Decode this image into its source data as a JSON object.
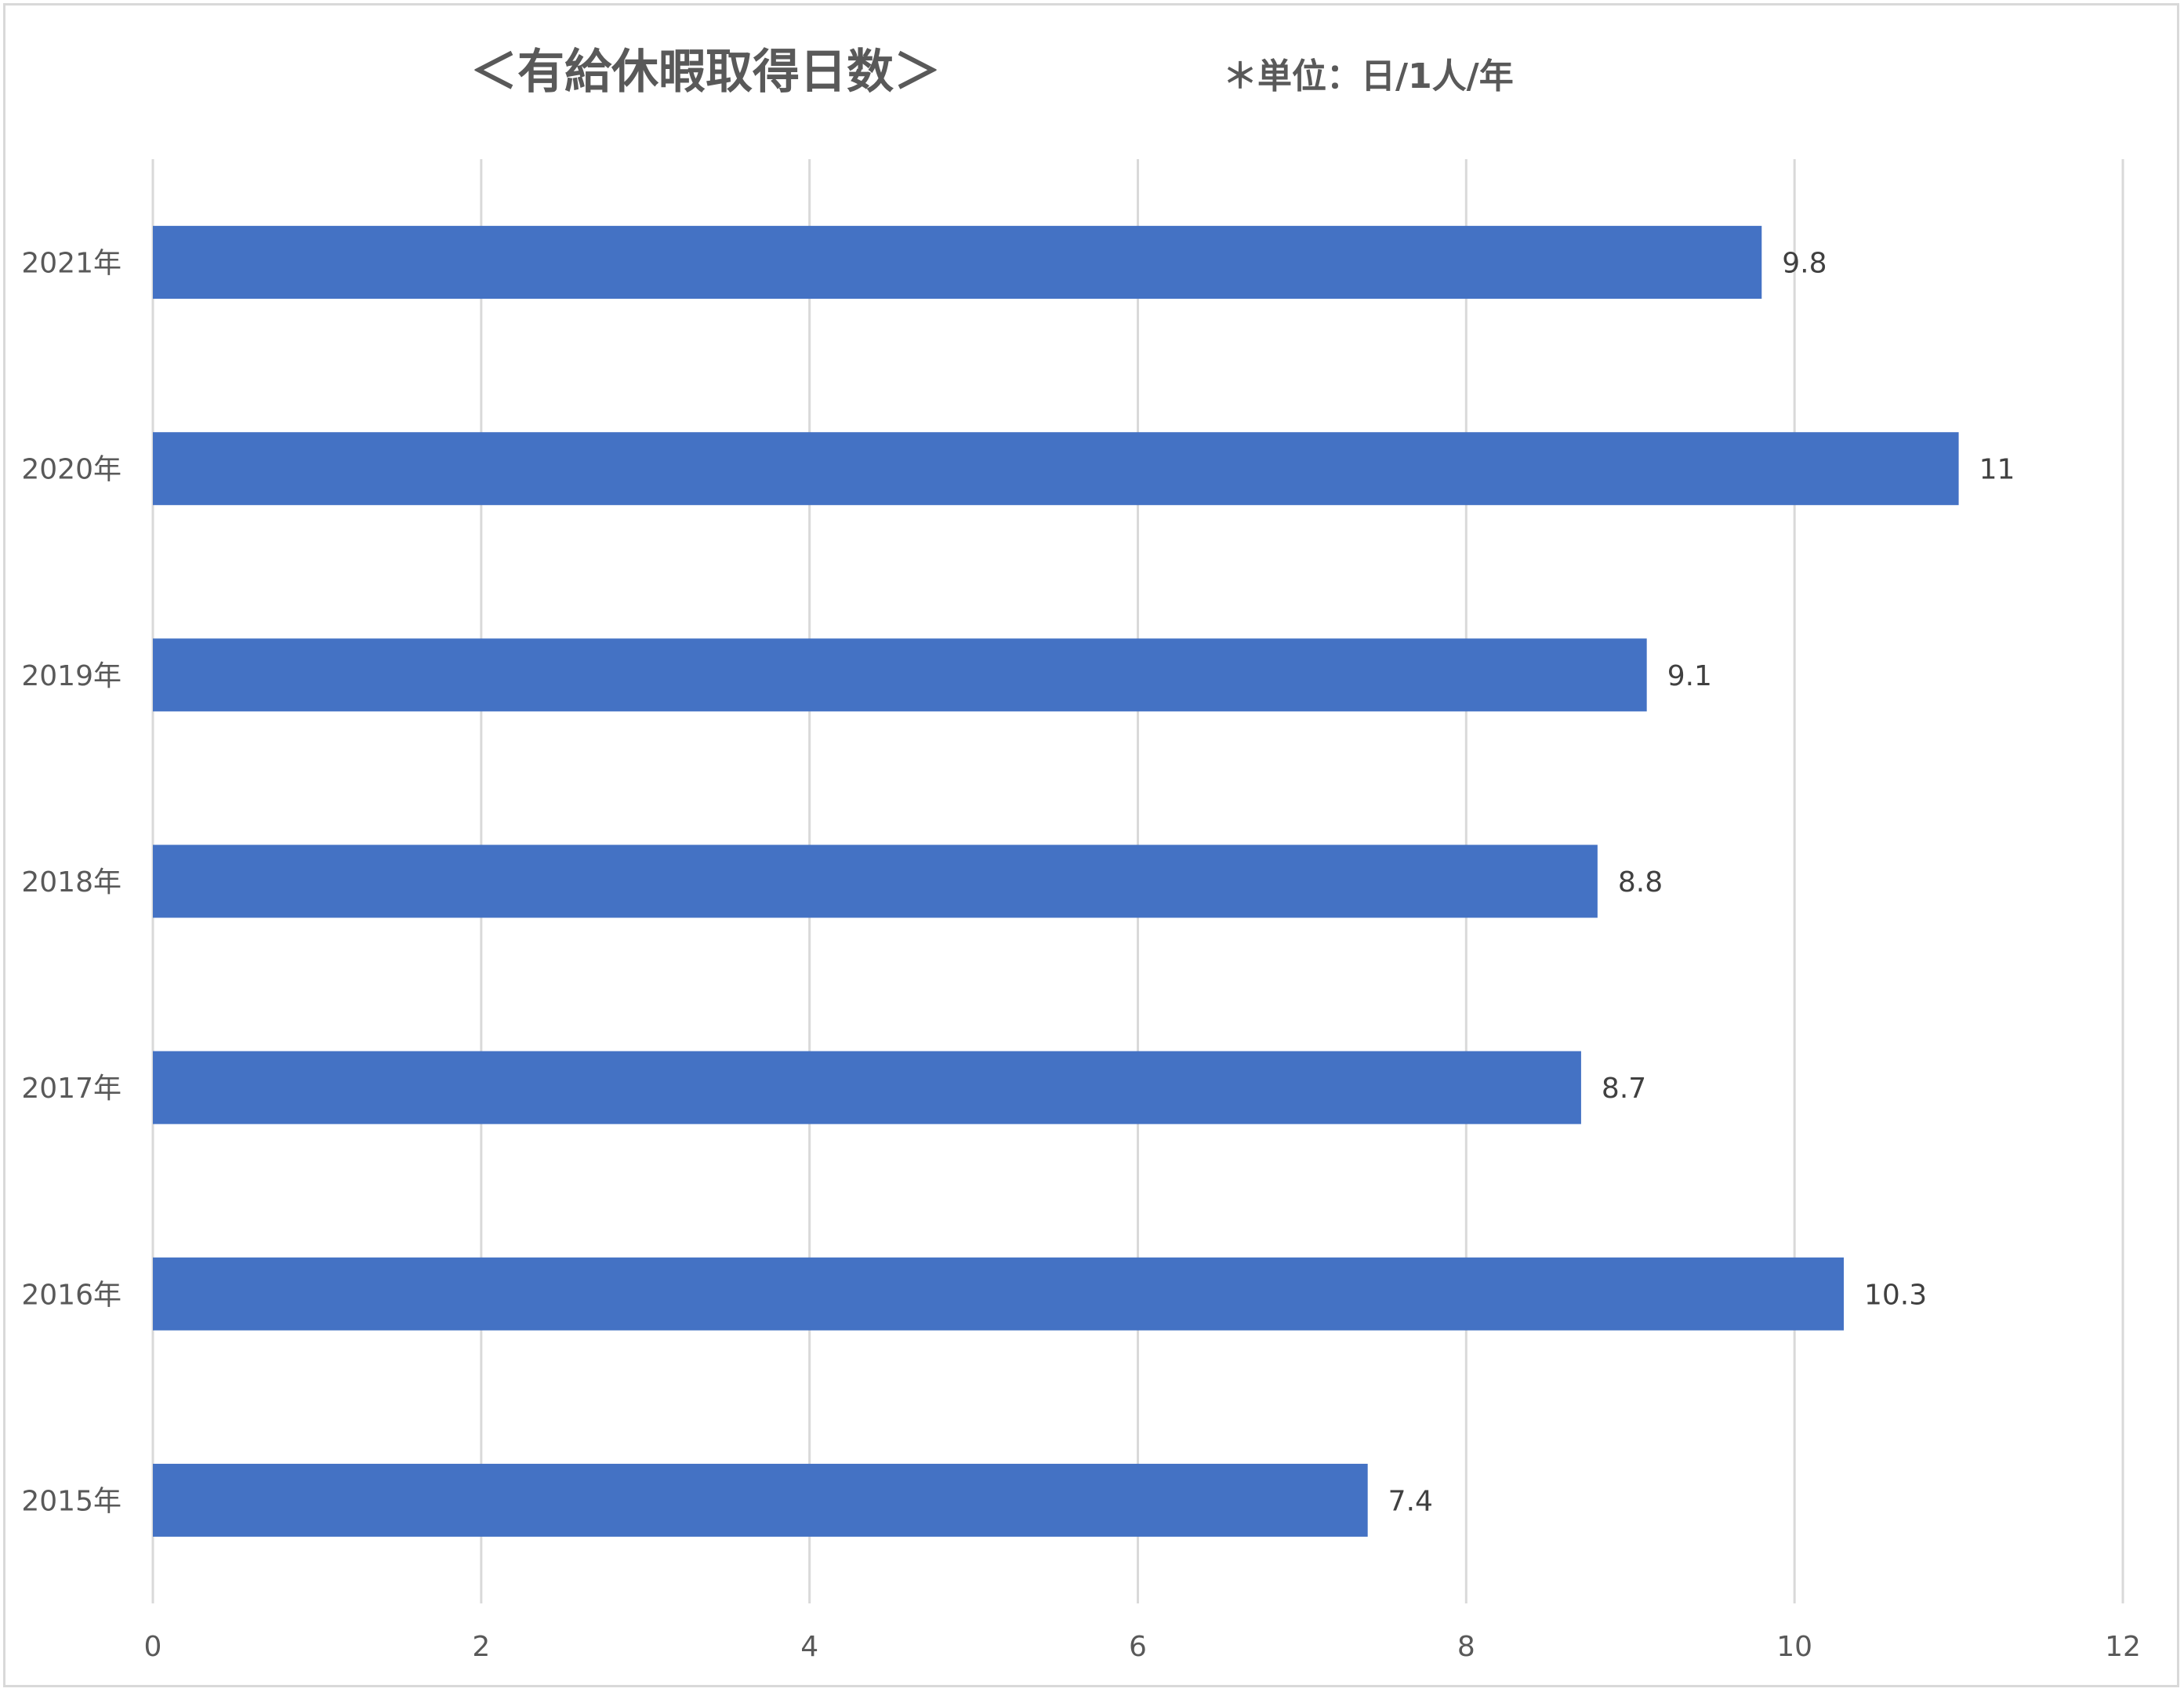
{
  "chart_data": {
    "type": "bar",
    "orientation": "horizontal",
    "title": "＜有給休暇取得日数＞",
    "subtitle": "＊単位：日/1人/年",
    "categories": [
      "2021年",
      "2020年",
      "2019年",
      "2018年",
      "2017年",
      "2016年",
      "2015年"
    ],
    "values": [
      9.8,
      11,
      9.1,
      8.8,
      8.7,
      10.3,
      7.4
    ],
    "data_labels": [
      "9.8",
      "11",
      "9.1",
      "8.8",
      "8.7",
      "10.3",
      "7.4"
    ],
    "xlim": [
      0,
      12
    ],
    "x_ticks": [
      0,
      2,
      4,
      6,
      8,
      10,
      12
    ],
    "x_tick_labels": [
      "0",
      "2",
      "4",
      "6",
      "8",
      "10",
      "12"
    ],
    "xlabel": "",
    "ylabel": "",
    "grid": "vertical",
    "legend": "none",
    "colors": {
      "bar": "#4472C4",
      "grid": "#d9d9d9",
      "text": "#595959",
      "data_label": "#404040",
      "border": "#d9d9d9"
    }
  }
}
